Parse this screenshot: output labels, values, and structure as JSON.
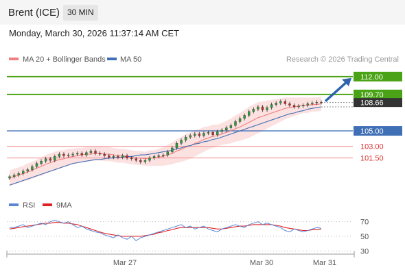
{
  "header": {
    "title": "Brent (ICE)",
    "interval": "30 MIN"
  },
  "timestamp": "Monday, March 30, 2026 11:37:14 AM CET",
  "credit": "Research © 2026 Trading Central",
  "legend": {
    "ma20": "MA 20 + Bollinger Bands",
    "ma50": "MA 50",
    "rsi": "RSI",
    "ma9": "9MA"
  },
  "colors": {
    "accent_green": "#4aa316",
    "ma50_blue": "#3f6fb5",
    "ma20_red": "#f07f7f",
    "price_box": "#333333",
    "rsi_line": "#5b86d6",
    "rsi_ma": "#dd2222",
    "arrow": "#2e64ae"
  },
  "chart_data": [
    {
      "type": "candlestick",
      "x_ticks": [
        "Mar 27",
        "Mar 30",
        "Mar 31"
      ],
      "ylim": [
        96.7,
        113.4
      ],
      "levels": [
        {
          "value": 112.0,
          "label": "112.00",
          "kind": "resistance-target"
        },
        {
          "value": 109.7,
          "label": "109.70",
          "kind": "pivot"
        },
        {
          "value": 105.0,
          "label": "105.00",
          "kind": "support"
        },
        {
          "value": 103.0,
          "label": "103.00",
          "kind": "support"
        },
        {
          "value": 101.5,
          "label": "101.50",
          "kind": "support"
        }
      ],
      "last_price": {
        "value": 108.66,
        "label": "108.66"
      },
      "closes": [
        99.1,
        99.3,
        99.5,
        99.8,
        100.0,
        100.4,
        100.8,
        101.1,
        101.4,
        101.2,
        101.7,
        102.0,
        101.8,
        101.9,
        102.0,
        102.1,
        101.9,
        102.2,
        102.4,
        102.1,
        102.0,
        101.8,
        101.6,
        101.7,
        101.6,
        101.8,
        101.5,
        101.4,
        101.2,
        101.0,
        101.2,
        101.5,
        101.7,
        101.8,
        101.9,
        102.3,
        102.8,
        103.4,
        103.8,
        104.2,
        104.4,
        104.6,
        104.4,
        104.7,
        104.8,
        104.5,
        104.9,
        105.1,
        105.4,
        105.7,
        106.2,
        106.6,
        107.0,
        107.5,
        107.8,
        108.1,
        107.7,
        108.0,
        108.4,
        108.6,
        108.8,
        108.5,
        108.3,
        108.1,
        108.2,
        108.3,
        108.5,
        108.6,
        108.7,
        108.66
      ],
      "ma20": [
        98.9,
        99.1,
        99.3,
        99.5,
        99.7,
        99.9,
        100.2,
        100.4,
        100.7,
        100.9,
        101.1,
        101.3,
        101.4,
        101.6,
        101.7,
        101.8,
        101.9,
        102.0,
        102.0,
        102.1,
        102.1,
        102.0,
        102.0,
        101.9,
        101.8,
        101.8,
        101.7,
        101.6,
        101.5,
        101.5,
        101.4,
        101.5,
        101.5,
        101.6,
        101.7,
        101.9,
        102.1,
        102.4,
        102.6,
        102.9,
        103.1,
        103.4,
        103.6,
        103.9,
        104.1,
        104.3,
        104.4,
        104.6,
        104.8,
        105.0,
        105.3,
        105.5,
        105.8,
        106.1,
        106.4,
        106.7,
        106.9,
        107.1,
        107.3,
        107.5,
        107.7,
        107.9,
        108.0,
        108.1,
        108.2,
        108.3,
        108.3,
        108.4,
        108.4,
        108.5
      ],
      "ma50": [
        98.0,
        98.2,
        98.4,
        98.6,
        98.8,
        99.0,
        99.2,
        99.4,
        99.6,
        99.8,
        100.0,
        100.2,
        100.4,
        100.6,
        100.8,
        100.9,
        101.0,
        101.1,
        101.2,
        101.3,
        101.3,
        101.4,
        101.5,
        101.5,
        101.6,
        101.6,
        101.7,
        101.7,
        101.8,
        101.9,
        101.9,
        102.0,
        102.1,
        102.2,
        102.3,
        102.4,
        102.5,
        102.7,
        102.8,
        103.0,
        103.1,
        103.3,
        103.4,
        103.6,
        103.7,
        103.9,
        104.0,
        104.2,
        104.4,
        104.6,
        104.8,
        105.0,
        105.2,
        105.4,
        105.6,
        105.8,
        106.0,
        106.2,
        106.4,
        106.6,
        106.8,
        107.0,
        107.2,
        107.3,
        107.5,
        107.6,
        107.8,
        107.9,
        108.0,
        108.1
      ],
      "bollinger": {
        "upper_offset": [
          1.0,
          1.0,
          1.0,
          1.0,
          1.1,
          1.1,
          1.1,
          1.2,
          1.2,
          1.2,
          1.2,
          1.2,
          1.1,
          1.1,
          1.0,
          1.0,
          0.9,
          0.9,
          0.9,
          0.9,
          0.9,
          0.9,
          0.9,
          0.9,
          0.9,
          0.9,
          0.9,
          0.9,
          0.9,
          0.9,
          0.9,
          1.0,
          1.0,
          1.1,
          1.2,
          1.3,
          1.4,
          1.5,
          1.6,
          1.7,
          1.7,
          1.7,
          1.6,
          1.6,
          1.5,
          1.5,
          1.4,
          1.4,
          1.5,
          1.6,
          1.7,
          1.8,
          1.9,
          2.0,
          2.0,
          2.0,
          1.9,
          1.8,
          1.7,
          1.6,
          1.5,
          1.4,
          1.3,
          1.2,
          1.1,
          1.0,
          1.0,
          0.9,
          0.9,
          0.9
        ]
      }
    },
    {
      "type": "line",
      "name": "RSI",
      "ylim": [
        20,
        80
      ],
      "y_ticks": [
        70,
        50,
        30
      ],
      "rsi": [
        62,
        62,
        64,
        66,
        62,
        64,
        66,
        68,
        66,
        70,
        72,
        70,
        68,
        70,
        66,
        62,
        64,
        60,
        58,
        56,
        55,
        52,
        50,
        48,
        52,
        48,
        46,
        50,
        44,
        48,
        50,
        52,
        54,
        56,
        58,
        60,
        62,
        64,
        66,
        62,
        64,
        60,
        62,
        64,
        60,
        58,
        56,
        60,
        62,
        64,
        66,
        64,
        62,
        66,
        68,
        70,
        66,
        68,
        66,
        64,
        62,
        58,
        56,
        60,
        58,
        56,
        58,
        60,
        62,
        61
      ],
      "ma9": [
        60,
        61,
        62,
        63,
        64,
        65,
        66,
        67,
        68,
        68,
        69,
        69,
        68,
        68,
        67,
        66,
        64,
        62,
        60,
        58,
        56,
        54,
        53,
        52,
        51,
        50,
        50,
        50,
        50,
        50,
        51,
        52,
        53,
        55,
        56,
        58,
        59,
        61,
        62,
        62,
        62,
        62,
        62,
        62,
        62,
        61,
        60,
        60,
        61,
        62,
        63,
        64,
        64,
        65,
        66,
        66,
        66,
        66,
        66,
        65,
        64,
        62,
        61,
        60,
        59,
        58,
        58,
        59,
        59,
        60
      ]
    }
  ]
}
